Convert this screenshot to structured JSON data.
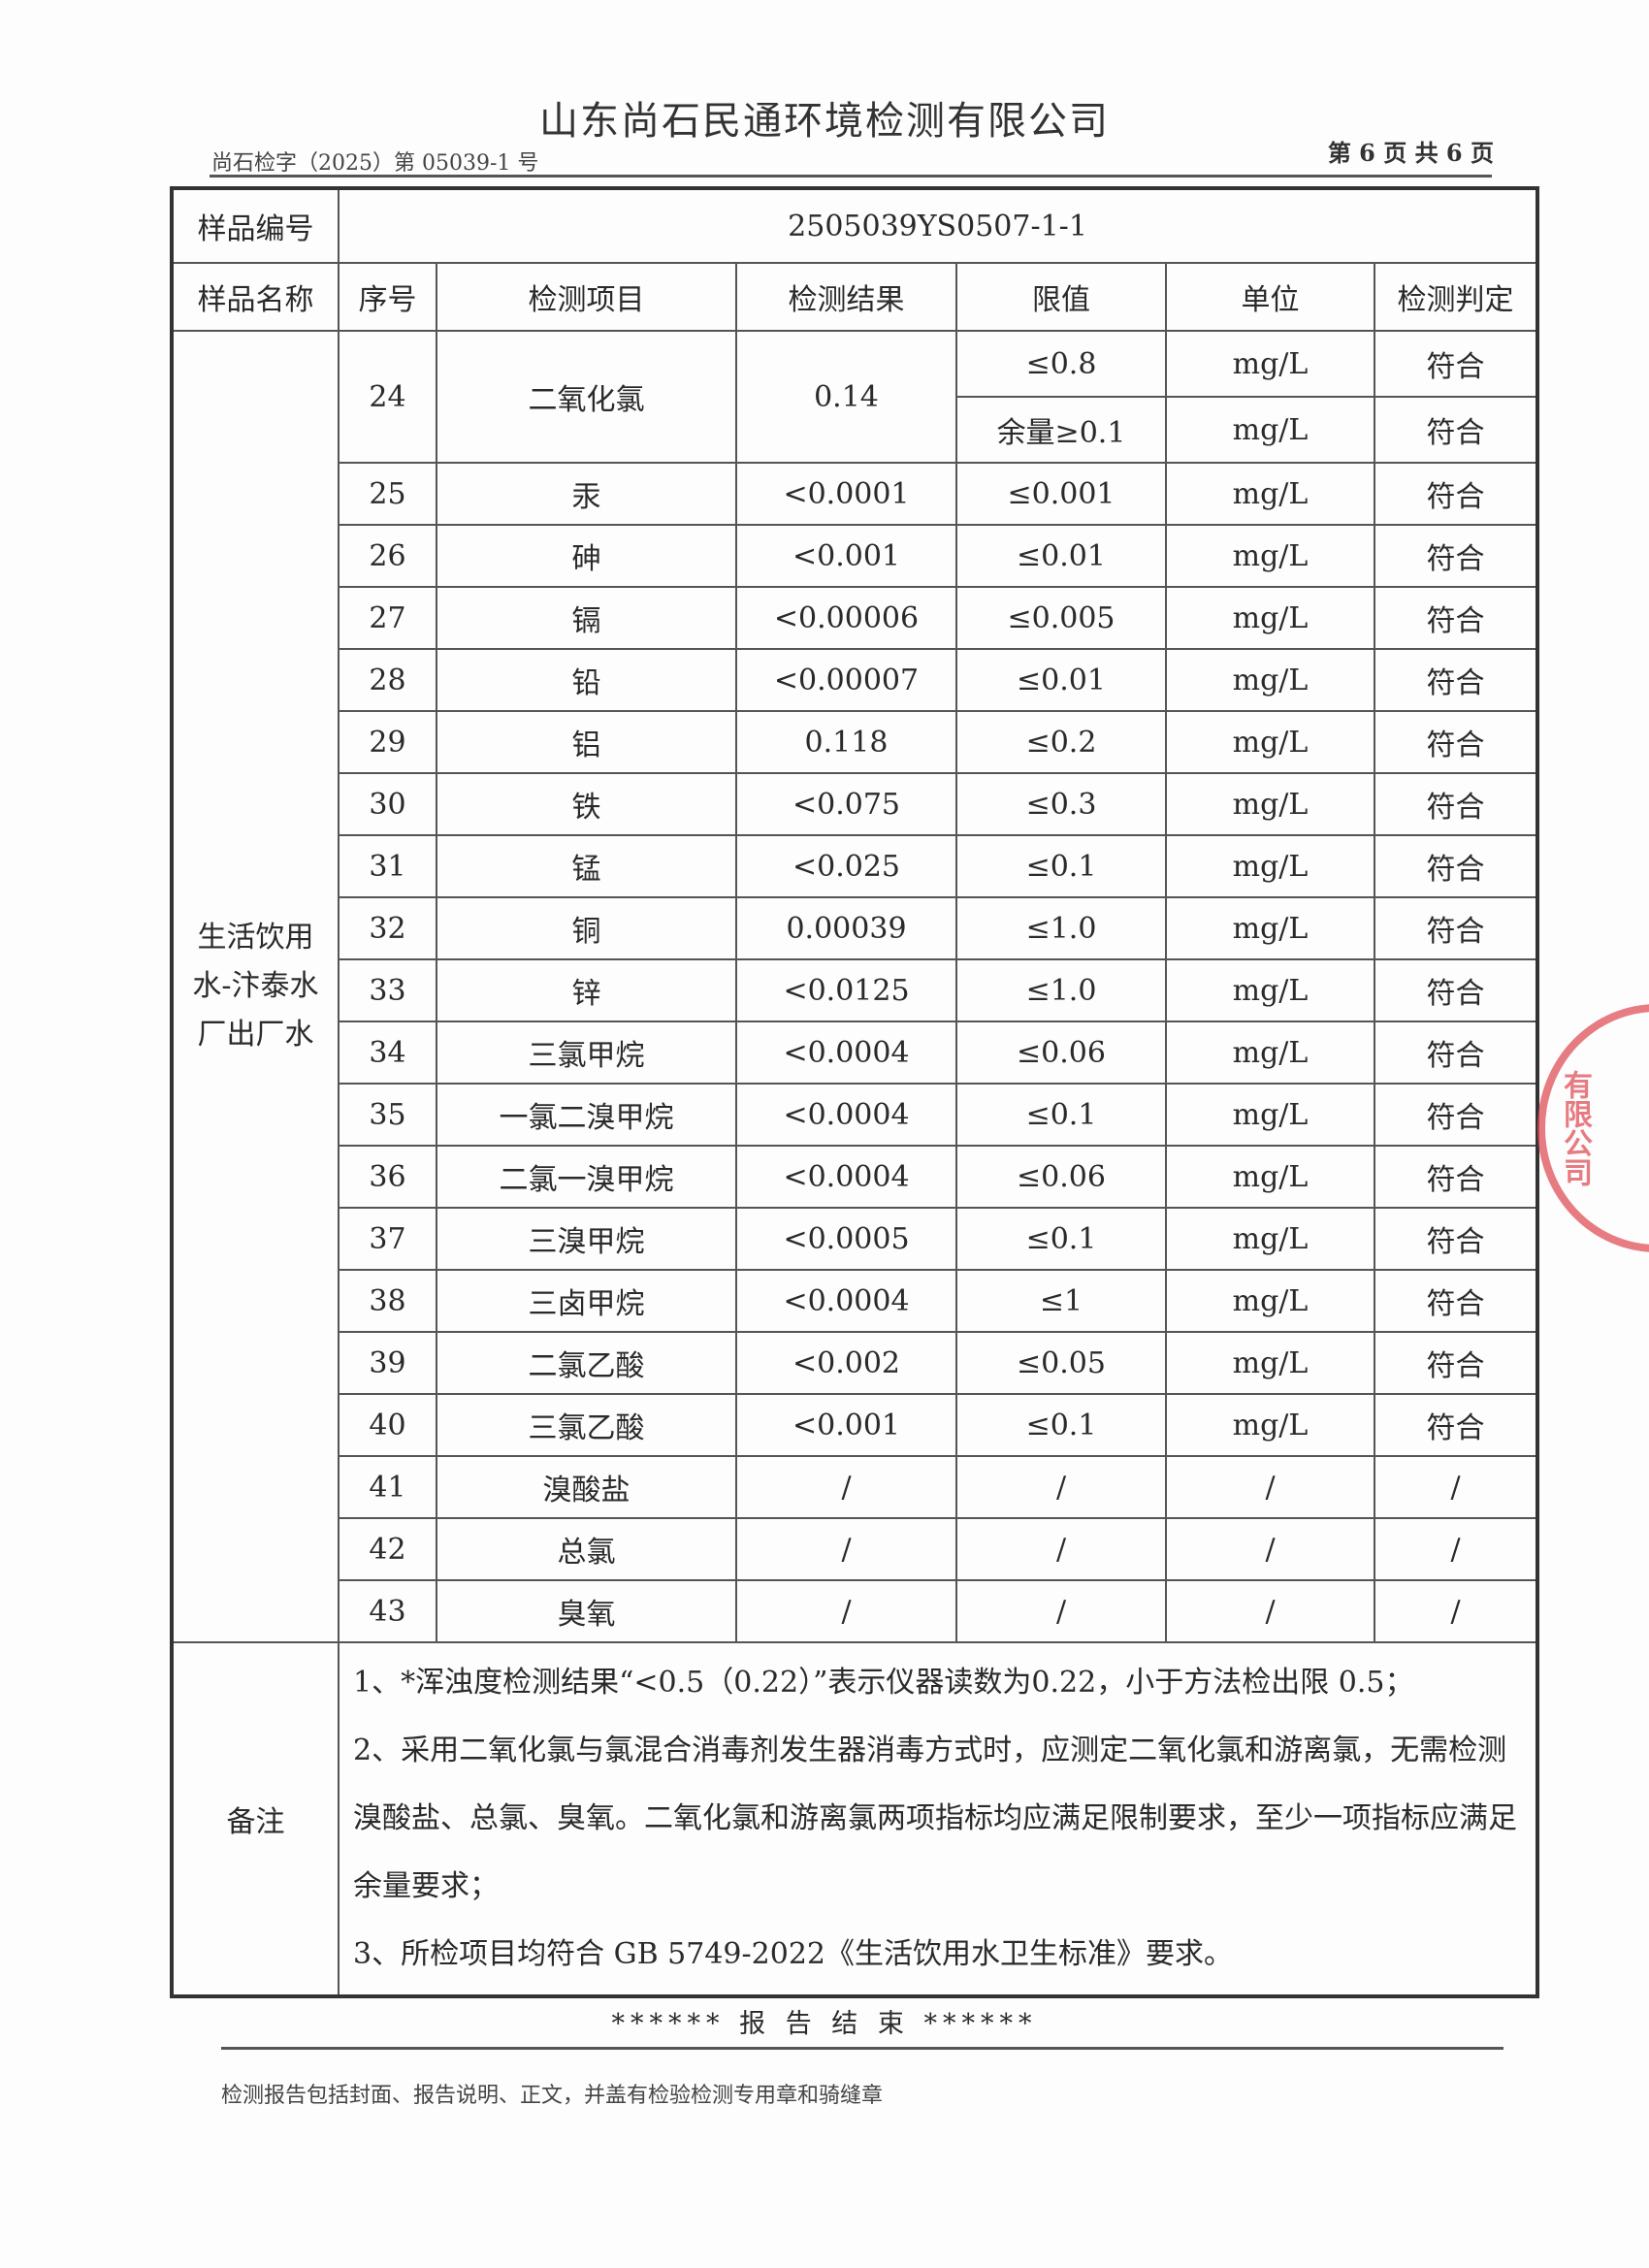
{
  "header": {
    "company": "山东尚石民通环境检测有限公司",
    "report_no": "尚石检字（2025）第 05039-1 号",
    "page": "第 6 页 共 6 页"
  },
  "table": {
    "sample_no_label": "样品编号",
    "sample_no": "2505039YS0507-1-1",
    "columns": [
      "样品名称",
      "序号",
      "检测项目",
      "检测结果",
      "限值",
      "单位",
      "检测判定"
    ],
    "sample_name": "生活饮用水-汴泰水厂出厂水",
    "first_row": {
      "no": "24",
      "item": "二氧化氯",
      "result": "0.14",
      "limits": [
        "≤0.8",
        "余量≥0.1"
      ],
      "units": [
        "mg/L",
        "mg/L"
      ],
      "verdicts": [
        "符合",
        "符合"
      ]
    },
    "rows": [
      [
        "25",
        "汞",
        "<0.0001",
        "≤0.001",
        "mg/L",
        "符合"
      ],
      [
        "26",
        "砷",
        "<0.001",
        "≤0.01",
        "mg/L",
        "符合"
      ],
      [
        "27",
        "镉",
        "<0.00006",
        "≤0.005",
        "mg/L",
        "符合"
      ],
      [
        "28",
        "铅",
        "<0.00007",
        "≤0.01",
        "mg/L",
        "符合"
      ],
      [
        "29",
        "铝",
        "0.118",
        "≤0.2",
        "mg/L",
        "符合"
      ],
      [
        "30",
        "铁",
        "<0.075",
        "≤0.3",
        "mg/L",
        "符合"
      ],
      [
        "31",
        "锰",
        "<0.025",
        "≤0.1",
        "mg/L",
        "符合"
      ],
      [
        "32",
        "铜",
        "0.00039",
        "≤1.0",
        "mg/L",
        "符合"
      ],
      [
        "33",
        "锌",
        "<0.0125",
        "≤1.0",
        "mg/L",
        "符合"
      ],
      [
        "34",
        "三氯甲烷",
        "<0.0004",
        "≤0.06",
        "mg/L",
        "符合"
      ],
      [
        "35",
        "一氯二溴甲烷",
        "<0.0004",
        "≤0.1",
        "mg/L",
        "符合"
      ],
      [
        "36",
        "二氯一溴甲烷",
        "<0.0004",
        "≤0.06",
        "mg/L",
        "符合"
      ],
      [
        "37",
        "三溴甲烷",
        "<0.0005",
        "≤0.1",
        "mg/L",
        "符合"
      ],
      [
        "38",
        "三卤甲烷",
        "<0.0004",
        "≤1",
        "mg/L",
        "符合"
      ],
      [
        "39",
        "二氯乙酸",
        "<0.002",
        "≤0.05",
        "mg/L",
        "符合"
      ],
      [
        "40",
        "三氯乙酸",
        "<0.001",
        "≤0.1",
        "mg/L",
        "符合"
      ],
      [
        "41",
        "溴酸盐",
        "/",
        "/",
        "/",
        "/"
      ],
      [
        "42",
        "总氯",
        "/",
        "/",
        "/",
        "/"
      ],
      [
        "43",
        "臭氧",
        "/",
        "/",
        "/",
        "/"
      ]
    ],
    "notes_label": "备注",
    "notes": [
      "1、*浑浊度检测结果“<0.5（0.22）”表示仪器读数为0.22，小于方法检出限 0.5；",
      "2、采用二氧化氯与氯混合消毒剂发生器消毒方式时，应测定二氧化氯和游离氯，无需检测溴酸盐、总氯、臭氧。二氧化氯和游离氯两项指标均应满足限制要求，至少一项指标应满足余量要求；",
      "3、所检项目均符合 GB 5749-2022《生活饮用水卫生标准》要求。"
    ]
  },
  "end_text": "****** 报 告 结 束 ******",
  "footer": "检测报告包括封面、报告说明、正文，并盖有检验检测专用章和骑缝章",
  "stamp": {
    "text": "有限公司",
    "color": "#e0505a"
  }
}
